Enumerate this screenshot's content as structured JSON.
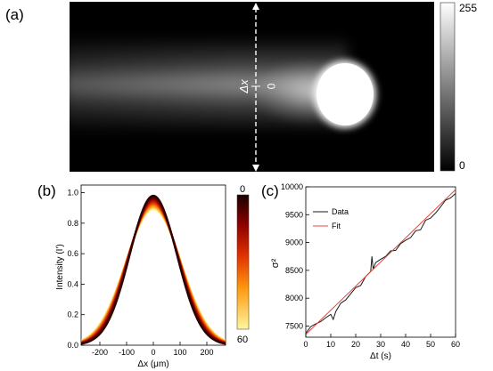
{
  "panels": {
    "a": {
      "label": "(a)",
      "delta_label": "Δx",
      "zero_label": "0",
      "colorbar_max": "255",
      "colorbar_min": "0"
    },
    "b": {
      "label": "(b)",
      "colorbar_top": "0",
      "colorbar_bottom": "60"
    },
    "c": {
      "label": "(c)"
    }
  },
  "colors": {
    "data_line": "#1a1a1a",
    "fit_line": "#e0483e",
    "heat_dark": "#2a0000",
    "heat_red": "#cc1a00",
    "heat_yellow": "#fff37a"
  },
  "chart_data": [
    {
      "id": "a",
      "type": "heatmap",
      "title": "",
      "colorbar": {
        "min": 0,
        "max": 255,
        "ticks": [
          "255",
          "0"
        ],
        "colormap": "gray"
      },
      "annotation": "Δx = 0 (dashed vertical line)"
    },
    {
      "id": "b",
      "type": "line",
      "xlabel": "Δx (μm)",
      "ylabel": "Intensity (I')",
      "xlim": [
        -270,
        270
      ],
      "ylim": [
        0,
        1.05
      ],
      "xticks": [
        -200,
        -100,
        0,
        100,
        200
      ],
      "xtick_labels": [
        "-200",
        "-100",
        "0",
        "100",
        "200"
      ],
      "yticks": [
        0.0,
        0.2,
        0.4,
        0.6,
        0.8,
        1.0
      ],
      "ytick_labels": [
        "0.0",
        "0.2",
        "0.4",
        "0.6",
        "0.8",
        "1.0"
      ],
      "colorbar": {
        "top": "0",
        "bottom": "60",
        "colormap": "hot"
      },
      "series_count": 12,
      "peak_range": [
        0.89,
        0.98
      ],
      "sigma_range_um": [
        88,
        104
      ]
    },
    {
      "id": "c",
      "type": "line",
      "xlabel": "Δt (s)",
      "ylabel": "σ²",
      "xlim": [
        0,
        60
      ],
      "ylim": [
        7300,
        10000
      ],
      "xticks": [
        0,
        10,
        20,
        30,
        40,
        50,
        60
      ],
      "xtick_labels": [
        "0",
        "10",
        "20",
        "30",
        "40",
        "50",
        "60"
      ],
      "yticks": [
        7500,
        8000,
        8500,
        9000,
        9500,
        10000
      ],
      "ytick_labels": [
        "7500",
        "8000",
        "8500",
        "9000",
        "9500",
        "10000"
      ],
      "legend": [
        "Data",
        "Fit"
      ],
      "legend_position": "top-left",
      "series": [
        {
          "name": "Data",
          "x": [
            0,
            2,
            4,
            6,
            8,
            10,
            11,
            12,
            14,
            16,
            18,
            20,
            22,
            24,
            26,
            26.5,
            27,
            28,
            30,
            32,
            34,
            36,
            38,
            40,
            42,
            44,
            46,
            48,
            50,
            52,
            54,
            56,
            58,
            60
          ],
          "y": [
            7370,
            7490,
            7540,
            7580,
            7650,
            7710,
            7620,
            7760,
            7910,
            7970,
            8080,
            8190,
            8230,
            8390,
            8480,
            8750,
            8520,
            8640,
            8700,
            8750,
            8850,
            8860,
            8980,
            9040,
            9090,
            9210,
            9230,
            9400,
            9440,
            9530,
            9640,
            9760,
            9800,
            9880
          ]
        },
        {
          "name": "Fit",
          "x": [
            0,
            60
          ],
          "y": [
            7350,
            9950
          ]
        }
      ]
    }
  ]
}
